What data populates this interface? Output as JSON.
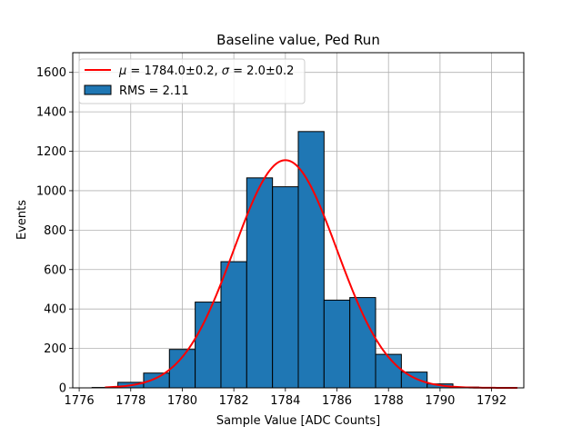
{
  "chart_data": {
    "type": "bar",
    "title": "Baseline value, Ped Run",
    "xlabel": "Sample Value [ADC Counts]",
    "ylabel": "Events",
    "xlim": [
      1775.75,
      1793.25
    ],
    "ylim": [
      0,
      1700
    ],
    "x_ticks": [
      1776,
      1778,
      1780,
      1782,
      1784,
      1786,
      1788,
      1790,
      1792
    ],
    "y_ticks": [
      0,
      200,
      400,
      600,
      800,
      1000,
      1200,
      1400,
      1600
    ],
    "grid": true,
    "legend_position": "top-left",
    "histogram": {
      "name": "RMS = 2.11",
      "bin_edges": [
        1776.5,
        1777.5,
        1778.5,
        1779.5,
        1780.5,
        1781.5,
        1782.5,
        1783.5,
        1784.5,
        1785.5,
        1786.5,
        1787.5,
        1788.5,
        1789.5,
        1790.5,
        1791.5,
        1792.5
      ],
      "values": [
        2,
        28,
        75,
        195,
        435,
        640,
        1065,
        1020,
        1300,
        445,
        458,
        170,
        80,
        20,
        4,
        1
      ],
      "color": "#1f77b4",
      "edgecolor": "#000000"
    },
    "fit": {
      "name_prefix_mu": "μ",
      "name_rest": " = 1784.0±0.2, ",
      "name_prefix_sigma": "σ",
      "name_rest2": " = 2.0±0.2",
      "mu": 1784.0,
      "sigma": 2.0,
      "amplitude": 1155,
      "x_range": [
        1777,
        1793
      ],
      "color": "#ff0000"
    }
  }
}
